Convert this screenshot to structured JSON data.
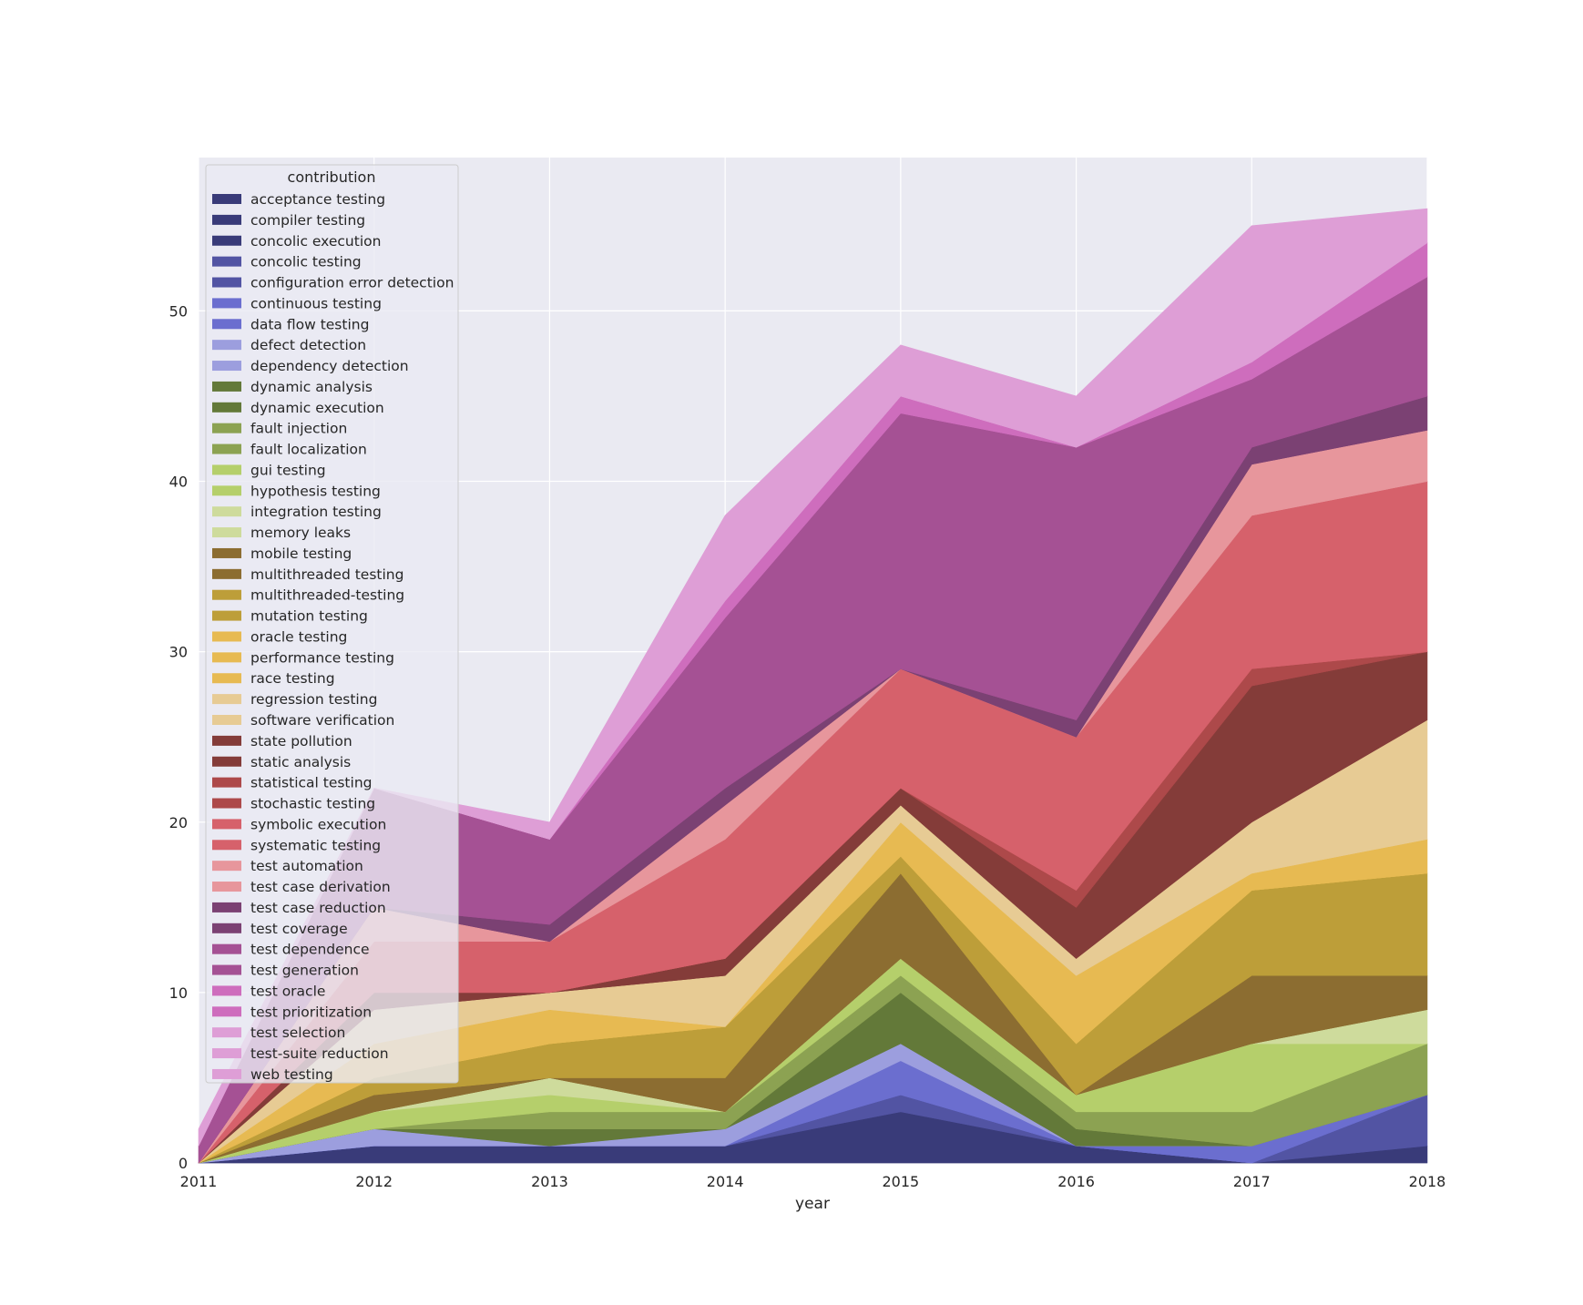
{
  "chart_data": {
    "type": "area",
    "stacked": true,
    "x": [
      2011,
      2012,
      2013,
      2014,
      2015,
      2016,
      2017,
      2018
    ],
    "xlabel": "year",
    "ylabel": "",
    "xlim": [
      2011,
      2018
    ],
    "ylim": [
      0,
      59
    ],
    "x_ticks": [
      2011,
      2012,
      2013,
      2014,
      2015,
      2016,
      2017,
      2018
    ],
    "y_ticks": [
      0,
      10,
      20,
      30,
      40,
      50
    ],
    "grid": true,
    "legend": {
      "title": "contribution",
      "placement": "upper-left"
    },
    "background": "#eaeaf2",
    "series": [
      {
        "name": "acceptance testing",
        "color": "#393b79",
        "values": [
          0,
          0,
          0,
          0,
          0,
          0,
          0,
          0
        ]
      },
      {
        "name": "compiler testing",
        "color": "#393b79",
        "values": [
          0,
          1,
          1,
          1,
          3,
          1,
          0,
          1
        ]
      },
      {
        "name": "concolic execution",
        "color": "#393b79",
        "values": [
          0,
          0,
          0,
          0,
          0,
          0,
          0,
          0
        ]
      },
      {
        "name": "concolic testing",
        "color": "#5254a3",
        "values": [
          0,
          0,
          0,
          0,
          1,
          0,
          0,
          3
        ]
      },
      {
        "name": "configuration error detection",
        "color": "#5254a3",
        "values": [
          0,
          0,
          0,
          0,
          0,
          0,
          0,
          0
        ]
      },
      {
        "name": "continuous testing",
        "color": "#6b6ecf",
        "values": [
          0,
          0,
          0,
          0,
          0,
          0,
          0,
          0
        ]
      },
      {
        "name": "data flow testing",
        "color": "#6b6ecf",
        "values": [
          0,
          0,
          0,
          0,
          2,
          0,
          1,
          0
        ]
      },
      {
        "name": "defect detection",
        "color": "#9c9ede",
        "values": [
          0,
          1,
          0,
          1,
          1,
          0,
          0,
          0
        ]
      },
      {
        "name": "dependency detection",
        "color": "#9c9ede",
        "values": [
          0,
          0,
          0,
          0,
          0,
          0,
          0,
          0
        ]
      },
      {
        "name": "dynamic analysis",
        "color": "#637939",
        "values": [
          0,
          0,
          1,
          0,
          3,
          1,
          0,
          0
        ]
      },
      {
        "name": "dynamic execution",
        "color": "#637939",
        "values": [
          0,
          0,
          0,
          0,
          0,
          0,
          0,
          0
        ]
      },
      {
        "name": "fault injection",
        "color": "#8ca252",
        "values": [
          0,
          0,
          0,
          0,
          1,
          0,
          0,
          0
        ]
      },
      {
        "name": "fault localization",
        "color": "#8ca252",
        "values": [
          0,
          0,
          1,
          1,
          0,
          1,
          2,
          3
        ]
      },
      {
        "name": "gui testing",
        "color": "#b5cf6b",
        "values": [
          0,
          1,
          1,
          0,
          1,
          1,
          4,
          0
        ]
      },
      {
        "name": "hypothesis testing",
        "color": "#b5cf6b",
        "values": [
          0,
          0,
          0,
          0,
          0,
          0,
          0,
          0
        ]
      },
      {
        "name": "integration testing",
        "color": "#cedb9c",
        "values": [
          0,
          0,
          1,
          0,
          0,
          0,
          0,
          2
        ]
      },
      {
        "name": "memory leaks",
        "color": "#cedb9c",
        "values": [
          0,
          0,
          0,
          0,
          0,
          0,
          0,
          0
        ]
      },
      {
        "name": "mobile testing",
        "color": "#8c6d31",
        "values": [
          0,
          0,
          0,
          0,
          0,
          0,
          0,
          0
        ]
      },
      {
        "name": "multithreaded testing",
        "color": "#8c6d31",
        "values": [
          0,
          1,
          0,
          2,
          5,
          0,
          4,
          2
        ]
      },
      {
        "name": "multithreaded-testing",
        "color": "#bd9e39",
        "values": [
          0,
          0,
          0,
          0,
          0,
          0,
          0,
          0
        ]
      },
      {
        "name": "mutation testing",
        "color": "#bd9e39",
        "values": [
          0,
          1,
          2,
          3,
          1,
          3,
          5,
          6
        ]
      },
      {
        "name": "oracle testing",
        "color": "#e7ba52",
        "values": [
          0,
          0,
          0,
          0,
          0,
          0,
          0,
          0
        ]
      },
      {
        "name": "performance testing",
        "color": "#e7ba52",
        "values": [
          0,
          0,
          0,
          0,
          0,
          0,
          0,
          0
        ]
      },
      {
        "name": "race testing",
        "color": "#e7ba52",
        "values": [
          0,
          2,
          2,
          0,
          2,
          4,
          1,
          2
        ]
      },
      {
        "name": "regression testing",
        "color": "#e7cb94",
        "values": [
          0,
          0,
          0,
          0,
          0,
          0,
          0,
          0
        ]
      },
      {
        "name": "software verification",
        "color": "#e7cb94",
        "values": [
          0,
          2,
          1,
          3,
          1,
          1,
          3,
          7
        ]
      },
      {
        "name": "state pollution",
        "color": "#843c39",
        "values": [
          0,
          0,
          0,
          0,
          0,
          0,
          0,
          0
        ]
      },
      {
        "name": "static analysis",
        "color": "#843c39",
        "values": [
          0,
          1,
          0,
          1,
          1,
          3,
          8,
          4
        ]
      },
      {
        "name": "statistical testing",
        "color": "#ad494a",
        "values": [
          0,
          0,
          0,
          0,
          0,
          0,
          0,
          0
        ]
      },
      {
        "name": "stochastic testing",
        "color": "#ad494a",
        "values": [
          0,
          0,
          0,
          0,
          0,
          1,
          1,
          0
        ]
      },
      {
        "name": "symbolic execution",
        "color": "#d6616b",
        "values": [
          0,
          0,
          0,
          0,
          0,
          0,
          0,
          0
        ]
      },
      {
        "name": "systematic testing",
        "color": "#d6616b",
        "values": [
          0,
          3,
          3,
          7,
          7,
          9,
          9,
          10
        ]
      },
      {
        "name": "test automation",
        "color": "#e7969c",
        "values": [
          0,
          0,
          0,
          0,
          0,
          0,
          0,
          0
        ]
      },
      {
        "name": "test case derivation",
        "color": "#e7969c",
        "values": [
          0,
          2,
          0,
          2,
          0,
          0,
          3,
          3
        ]
      },
      {
        "name": "test case reduction",
        "color": "#7b4173",
        "values": [
          0,
          0,
          0,
          0,
          0,
          0,
          0,
          0
        ]
      },
      {
        "name": "test coverage",
        "color": "#7b4173",
        "values": [
          0,
          0,
          1,
          1,
          0,
          1,
          1,
          2
        ]
      },
      {
        "name": "test dependence",
        "color": "#a55194",
        "values": [
          0,
          0,
          0,
          0,
          0,
          0,
          0,
          0
        ]
      },
      {
        "name": "test generation",
        "color": "#a55194",
        "values": [
          1,
          7,
          5,
          10,
          15,
          16,
          4,
          7
        ]
      },
      {
        "name": "test oracle",
        "color": "#ce6dbd",
        "values": [
          0,
          0,
          0,
          0,
          0,
          0,
          0,
          0
        ]
      },
      {
        "name": "test prioritization",
        "color": "#ce6dbd",
        "values": [
          0,
          0,
          0,
          1,
          1,
          0,
          1,
          2
        ]
      },
      {
        "name": "test selection",
        "color": "#de9ed6",
        "values": [
          0,
          0,
          0,
          0,
          0,
          0,
          0,
          0
        ]
      },
      {
        "name": "test-suite reduction",
        "color": "#de9ed6",
        "values": [
          0,
          0,
          0,
          0,
          0,
          0,
          0,
          0
        ]
      },
      {
        "name": "web testing",
        "color": "#de9ed6",
        "values": [
          1,
          0,
          1,
          5,
          3,
          3,
          8,
          2
        ]
      }
    ]
  }
}
